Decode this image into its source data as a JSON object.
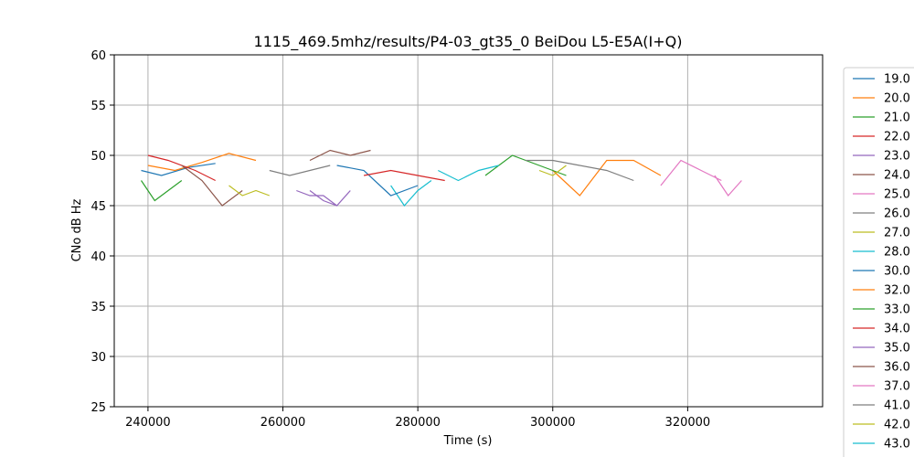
{
  "chart_data": {
    "type": "line",
    "title": "1115_469.5mhz/results/P4-03_gt35_0 BeiDou L5-E5A(I+Q)",
    "xlabel": "Time (s)",
    "ylabel": "CNo dB Hz",
    "xlim": [
      235000,
      340000
    ],
    "ylim": [
      25,
      60
    ],
    "xticks": [
      240000,
      260000,
      280000,
      300000,
      320000
    ],
    "yticks": [
      25,
      30,
      35,
      40,
      45,
      50,
      55,
      60
    ],
    "grid": true,
    "legend_position": "right-outside",
    "series": [
      {
        "name": "19.0",
        "color": "#1f77b4",
        "x": [
          239000,
          242000,
          246000,
          250000
        ],
        "values": [
          48.5,
          48.0,
          48.8,
          49.2
        ]
      },
      {
        "name": "20.0",
        "color": "#ff7f0e",
        "x": [
          240000,
          244000,
          248000,
          252000,
          256000
        ],
        "values": [
          49.0,
          48.5,
          49.3,
          50.2,
          49.5
        ]
      },
      {
        "name": "21.0",
        "color": "#2ca02c",
        "x": [
          239000,
          241000,
          243000,
          245000
        ],
        "values": [
          47.5,
          45.5,
          46.5,
          47.5
        ]
      },
      {
        "name": "22.0",
        "color": "#d62728",
        "x": [
          240000,
          243000,
          247000,
          250000
        ],
        "values": [
          50.0,
          49.5,
          48.5,
          47.5
        ]
      },
      {
        "name": "23.0",
        "color": "#9467bd",
        "x": [
          262000,
          264000,
          266000,
          268000
        ],
        "values": [
          46.5,
          46.0,
          46.0,
          45.0
        ]
      },
      {
        "name": "24.0",
        "color": "#8c564b",
        "x": [
          245000,
          248000,
          251000,
          254000
        ],
        "values": [
          49.0,
          47.5,
          45.0,
          46.5
        ]
      },
      {
        "name": "25.0",
        "color": "#e377c2",
        "x": [
          316000,
          319000,
          322000,
          325000
        ],
        "values": [
          47.0,
          49.5,
          48.5,
          47.5
        ]
      },
      {
        "name": "26.0",
        "color": "#7f7f7f",
        "x": [
          258000,
          261000,
          264000,
          267000
        ],
        "values": [
          48.5,
          48.0,
          48.5,
          49.0
        ]
      },
      {
        "name": "27.0",
        "color": "#bcbd22",
        "x": [
          252000,
          254000,
          256000,
          258000
        ],
        "values": [
          47.0,
          46.0,
          46.5,
          46.0
        ]
      },
      {
        "name": "28.0",
        "color": "#17becf",
        "x": [
          276000,
          278000,
          280000,
          282000
        ],
        "values": [
          47.0,
          45.0,
          46.5,
          47.5
        ]
      },
      {
        "name": "30.0",
        "color": "#1f77b4",
        "x": [
          268000,
          272000,
          276000,
          280000
        ],
        "values": [
          49.0,
          48.5,
          46.0,
          47.0
        ]
      },
      {
        "name": "32.0",
        "color": "#ff7f0e",
        "x": [
          300000,
          304000,
          308000,
          312000,
          316000
        ],
        "values": [
          48.5,
          46.0,
          49.5,
          49.5,
          48.0
        ]
      },
      {
        "name": "33.0",
        "color": "#2ca02c",
        "x": [
          290000,
          294000,
          298000,
          302000
        ],
        "values": [
          48.0,
          50.0,
          49.0,
          48.0
        ]
      },
      {
        "name": "34.0",
        "color": "#d62728",
        "x": [
          272000,
          276000,
          280000,
          284000
        ],
        "values": [
          48.0,
          48.5,
          48.0,
          47.5
        ]
      },
      {
        "name": "35.0",
        "color": "#9467bd",
        "x": [
          264000,
          266000,
          268000,
          270000
        ],
        "values": [
          46.5,
          45.5,
          45.0,
          46.5
        ]
      },
      {
        "name": "36.0",
        "color": "#8c564b",
        "x": [
          264000,
          267000,
          270000,
          273000
        ],
        "values": [
          49.5,
          50.5,
          50.0,
          50.5
        ]
      },
      {
        "name": "37.0",
        "color": "#e377c2",
        "x": [
          324000,
          326000,
          328000
        ],
        "values": [
          48.0,
          46.0,
          47.5
        ]
      },
      {
        "name": "41.0",
        "color": "#7f7f7f",
        "x": [
          296000,
          300000,
          304000,
          308000,
          312000
        ],
        "values": [
          49.5,
          49.5,
          49.0,
          48.5,
          47.5
        ]
      },
      {
        "name": "42.0",
        "color": "#bcbd22",
        "x": [
          298000,
          300000,
          302000
        ],
        "values": [
          48.5,
          48.0,
          49.0
        ]
      },
      {
        "name": "43.0",
        "color": "#17becf",
        "x": [
          283000,
          286000,
          289000,
          292000
        ],
        "values": [
          48.5,
          47.5,
          48.5,
          49.0
        ]
      }
    ]
  }
}
